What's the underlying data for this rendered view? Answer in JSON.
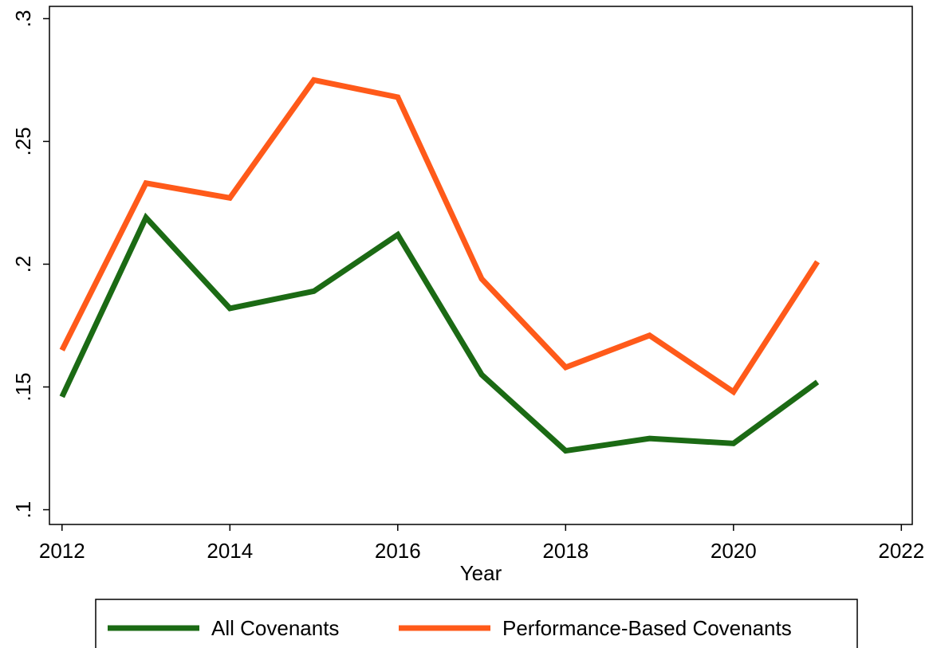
{
  "chart_data": {
    "type": "line",
    "xlabel": "Year",
    "x": [
      2012,
      2013,
      2014,
      2015,
      2016,
      2017,
      2018,
      2019,
      2020,
      2021
    ],
    "series": [
      {
        "name": "All Covenants",
        "color": "#1b6a14",
        "values": [
          0.146,
          0.219,
          0.182,
          0.189,
          0.212,
          0.155,
          0.124,
          0.129,
          0.127,
          0.152
        ]
      },
      {
        "name": "Performance-Based Covenants",
        "color": "#ff5a1a",
        "values": [
          0.165,
          0.233,
          0.227,
          0.275,
          0.268,
          0.194,
          0.158,
          0.171,
          0.148,
          0.201
        ]
      }
    ],
    "xlim": [
      2011.85,
      2022.13
    ],
    "ylim": [
      0.094,
      0.305
    ],
    "xticks": [
      2012,
      2014,
      2016,
      2018,
      2020,
      2022
    ],
    "yticks": [
      {
        "value": 0.1,
        "label": ".1"
      },
      {
        "value": 0.15,
        "label": ".15"
      },
      {
        "value": 0.2,
        "label": ".2"
      },
      {
        "value": 0.25,
        "label": ".25"
      },
      {
        "value": 0.3,
        "label": ".3"
      }
    ],
    "legend": "bottom"
  }
}
